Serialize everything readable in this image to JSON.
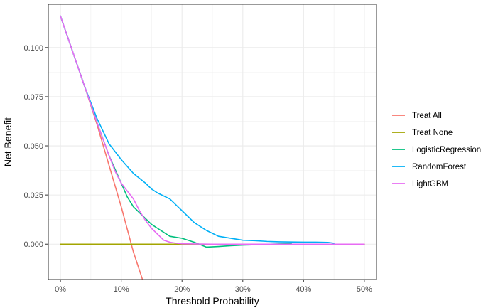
{
  "chart_data": {
    "type": "line",
    "title": "",
    "xlabel": "Threshold Probability",
    "ylabel": "Net Benefit",
    "xlim": [
      -0.02,
      0.52
    ],
    "ylim": [
      -0.018,
      0.122
    ],
    "x_ticks": [
      {
        "value": 0.0,
        "label": "0%"
      },
      {
        "value": 0.1,
        "label": "10%"
      },
      {
        "value": 0.2,
        "label": "20%"
      },
      {
        "value": 0.3,
        "label": "30%"
      },
      {
        "value": 0.4,
        "label": "40%"
      },
      {
        "value": 0.5,
        "label": "50%"
      }
    ],
    "y_ticks": [
      {
        "value": 0.0,
        "label": "0.000"
      },
      {
        "value": 0.025,
        "label": "0.025"
      },
      {
        "value": 0.05,
        "label": "0.050"
      },
      {
        "value": 0.075,
        "label": "0.075"
      },
      {
        "value": 0.1,
        "label": "0.100"
      }
    ],
    "grid": true,
    "legend_position": "right",
    "series": [
      {
        "name": "Treat All",
        "color": "#F8766D",
        "x": [
          0.0,
          0.02,
          0.04,
          0.06,
          0.08,
          0.1,
          0.12,
          0.135
        ],
        "y": [
          0.116,
          0.098,
          0.08,
          0.061,
          0.04,
          0.019,
          -0.004,
          -0.018
        ]
      },
      {
        "name": "Treat None",
        "color": "#A3A500",
        "x": [
          0.0,
          0.5
        ],
        "y": [
          0.0,
          0.0
        ]
      },
      {
        "name": "LogisticRegression",
        "color": "#00BF7D",
        "x": [
          0.0,
          0.02,
          0.04,
          0.06,
          0.08,
          0.09,
          0.1,
          0.11,
          0.12,
          0.13,
          0.14,
          0.15,
          0.16,
          0.17,
          0.18,
          0.2,
          0.22,
          0.24,
          0.26,
          0.28,
          0.3,
          0.32,
          0.34,
          0.36,
          0.38
        ],
        "y": [
          0.116,
          0.098,
          0.08,
          0.062,
          0.045,
          0.038,
          0.031,
          0.024,
          0.019,
          0.016,
          0.013,
          0.01,
          0.008,
          0.006,
          0.004,
          0.003,
          0.001,
          -0.0015,
          -0.0012,
          -0.0008,
          -0.0005,
          -0.0003,
          -0.0001,
          0.0001,
          0.0002
        ]
      },
      {
        "name": "RandomForest",
        "color": "#00B0F6",
        "x": [
          0.0,
          0.02,
          0.04,
          0.06,
          0.08,
          0.1,
          0.12,
          0.14,
          0.15,
          0.16,
          0.18,
          0.2,
          0.22,
          0.24,
          0.26,
          0.28,
          0.3,
          0.32,
          0.34,
          0.36,
          0.38,
          0.4,
          0.42,
          0.44,
          0.45
        ],
        "y": [
          0.116,
          0.098,
          0.08,
          0.064,
          0.051,
          0.043,
          0.036,
          0.031,
          0.028,
          0.026,
          0.023,
          0.017,
          0.011,
          0.007,
          0.004,
          0.003,
          0.002,
          0.0018,
          0.0014,
          0.0012,
          0.0011,
          0.001,
          0.001,
          0.0009,
          0.0005
        ]
      },
      {
        "name": "LightGBM",
        "color": "#E76BF3",
        "x": [
          0.0,
          0.02,
          0.04,
          0.06,
          0.08,
          0.09,
          0.1,
          0.11,
          0.12,
          0.13,
          0.14,
          0.15,
          0.16,
          0.17,
          0.18,
          0.19,
          0.2,
          0.22,
          0.25,
          0.3,
          0.4,
          0.5
        ],
        "y": [
          0.116,
          0.098,
          0.08,
          0.062,
          0.045,
          0.037,
          0.031,
          0.027,
          0.023,
          0.017,
          0.012,
          0.008,
          0.005,
          0.002,
          0.001,
          0.0005,
          0.0002,
          0.0001,
          0.0,
          0.0,
          0.0,
          0.0
        ]
      }
    ]
  }
}
